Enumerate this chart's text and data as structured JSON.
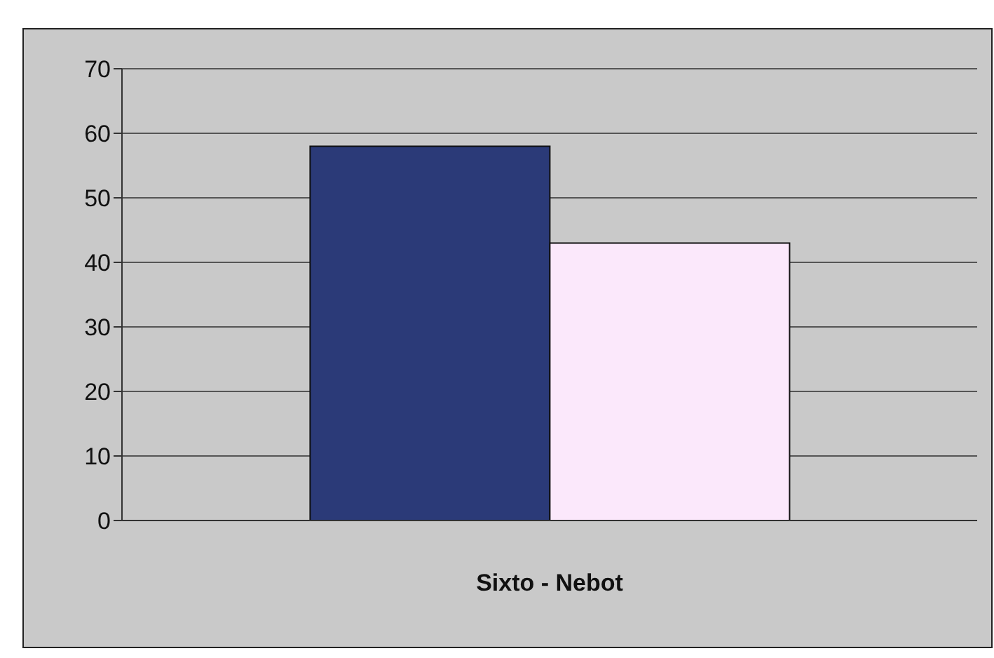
{
  "chart_data": {
    "type": "bar",
    "categories": [
      "Sixto - Nebot"
    ],
    "series": [
      {
        "color": "#2b3a78",
        "values": [
          58
        ]
      },
      {
        "color": "#fbe8fb",
        "values": [
          43
        ]
      }
    ],
    "ylim": [
      0,
      70
    ],
    "yticks": [
      0,
      10,
      20,
      30,
      40,
      50,
      60,
      70
    ],
    "grid": "y",
    "legend": false
  }
}
